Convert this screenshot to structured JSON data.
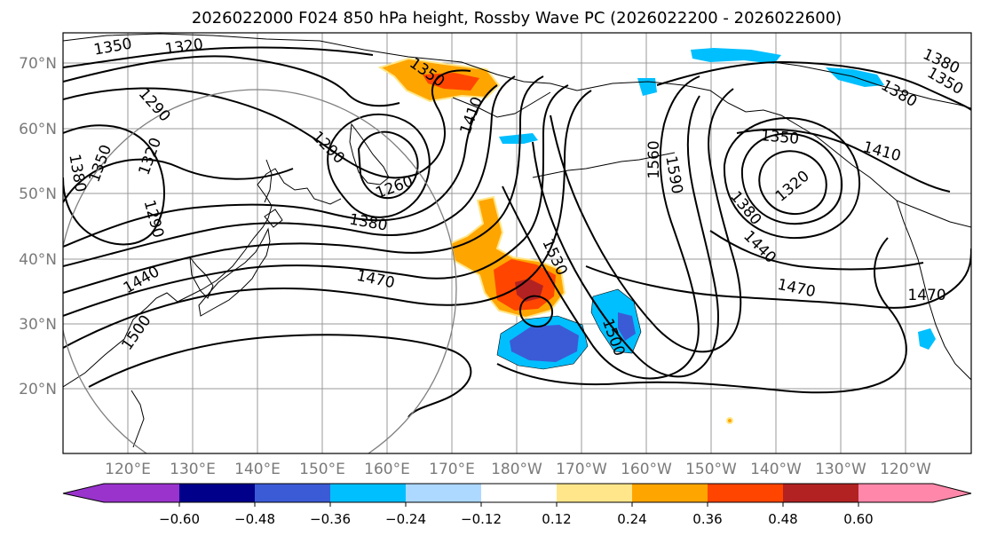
{
  "title": "2026022000 F024 850 hPa height, Rossby Wave PC (2026022200 - 2026022600)",
  "lat_labels": [
    "70°N",
    "60°N",
    "50°N",
    "40°N",
    "30°N",
    "20°N"
  ],
  "lon_labels": [
    "120°E",
    "130°E",
    "140°E",
    "150°E",
    "160°E",
    "170°E",
    "180°W",
    "170°W",
    "160°W",
    "150°W",
    "140°W",
    "130°W",
    "120°W"
  ],
  "contour_labels": [
    "1350",
    "1320",
    "1350",
    "1290",
    "1410",
    "1290",
    "1320",
    "1350",
    "1260",
    "1380",
    "1290",
    "1380",
    "1470",
    "1440",
    "1500",
    "1530",
    "1500",
    "1560",
    "1590",
    "1350",
    "1410",
    "1380",
    "1320",
    "1440",
    "1470",
    "1470",
    "1380",
    "1350",
    "1380"
  ],
  "colorbar": {
    "ticks": [
      "−0.60",
      "−0.48",
      "−0.36",
      "−0.24",
      "−0.12",
      "0.12",
      "0.24",
      "0.36",
      "0.48",
      "0.60"
    ],
    "colors": [
      "#9933cc",
      "#00008b",
      "#3b5bd6",
      "#00bfff",
      "#add8ff",
      "#ffffff",
      "#ffe68a",
      "#ffa500",
      "#ff4500",
      "#b22222",
      "#ff88aa"
    ]
  }
}
